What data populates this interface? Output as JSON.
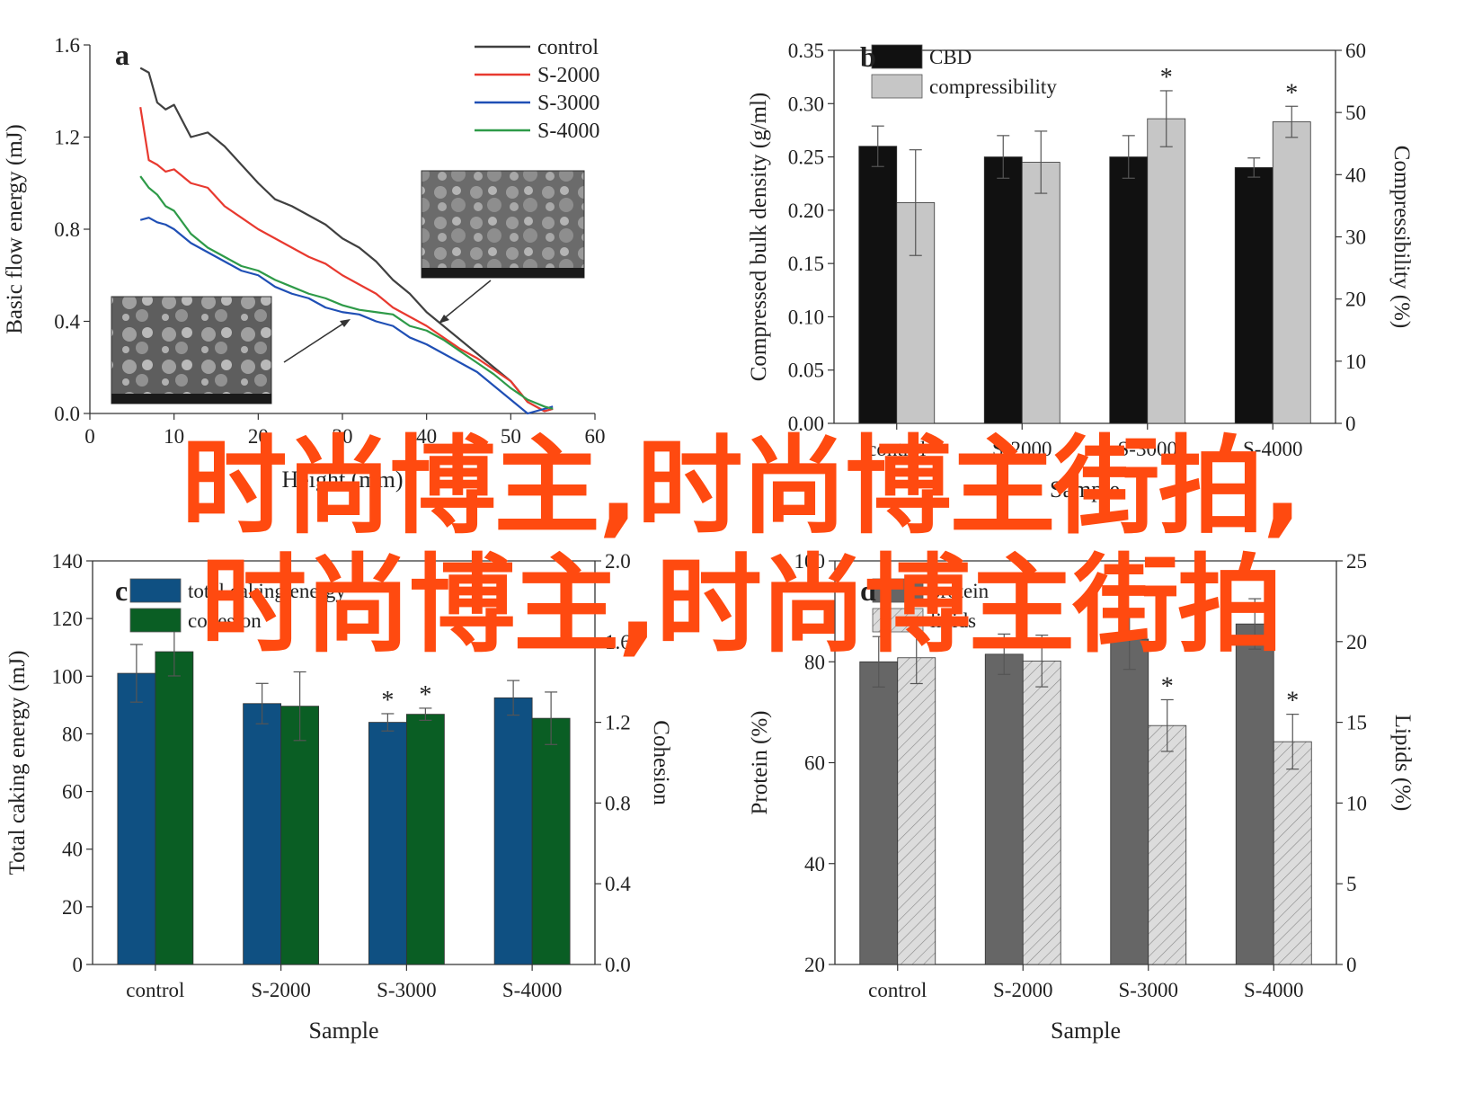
{
  "watermark": {
    "line1": "时尚博主,时尚博主街拍,",
    "line2": "时尚博主,时尚博主街拍"
  },
  "chart_data": [
    {
      "panel": "a",
      "type": "line",
      "xlabel": "Height (mm)",
      "ylabel": "Basic flow energy (mJ)",
      "xlim": [
        0,
        60
      ],
      "ylim": [
        0,
        1.6
      ],
      "xticks": [
        0,
        10,
        20,
        30,
        40,
        50,
        60
      ],
      "yticks": [
        0.0,
        0.4,
        0.8,
        1.2,
        1.6
      ],
      "legend_position": "top-right",
      "series": [
        {
          "name": "control",
          "color": "#404040",
          "x": [
            6,
            7,
            8,
            9,
            10,
            12,
            14,
            16,
            18,
            20,
            22,
            24,
            26,
            28,
            30,
            32,
            34,
            36,
            38,
            40,
            42,
            44,
            46,
            48,
            50,
            52,
            54,
            55
          ],
          "y": [
            1.5,
            1.48,
            1.35,
            1.32,
            1.34,
            1.2,
            1.22,
            1.16,
            1.08,
            1.0,
            0.93,
            0.9,
            0.86,
            0.82,
            0.76,
            0.72,
            0.66,
            0.58,
            0.52,
            0.44,
            0.38,
            0.32,
            0.26,
            0.2,
            0.14,
            0.05,
            0.01,
            0.02
          ]
        },
        {
          "name": "S-2000",
          "color": "#e8392f",
          "x": [
            6,
            7,
            8,
            9,
            10,
            12,
            14,
            16,
            18,
            20,
            22,
            24,
            26,
            28,
            30,
            32,
            34,
            36,
            38,
            40,
            42,
            44,
            46,
            48,
            50,
            52,
            54,
            55
          ],
          "y": [
            1.33,
            1.1,
            1.08,
            1.05,
            1.06,
            1.0,
            0.98,
            0.9,
            0.85,
            0.8,
            0.76,
            0.72,
            0.68,
            0.65,
            0.6,
            0.56,
            0.52,
            0.46,
            0.42,
            0.38,
            0.33,
            0.28,
            0.24,
            0.19,
            0.14,
            0.05,
            0.01,
            0.02
          ]
        },
        {
          "name": "S-3000",
          "color": "#1f4fb5",
          "x": [
            6,
            7,
            8,
            9,
            10,
            12,
            14,
            16,
            18,
            20,
            22,
            24,
            26,
            28,
            30,
            32,
            34,
            36,
            38,
            40,
            42,
            44,
            46,
            48,
            50,
            52,
            54,
            55
          ],
          "y": [
            0.84,
            0.85,
            0.83,
            0.82,
            0.8,
            0.74,
            0.7,
            0.66,
            0.62,
            0.6,
            0.55,
            0.52,
            0.5,
            0.46,
            0.44,
            0.43,
            0.4,
            0.38,
            0.33,
            0.3,
            0.26,
            0.22,
            0.18,
            0.12,
            0.06,
            0.0,
            0.02,
            0.03
          ]
        },
        {
          "name": "S-4000",
          "color": "#2e9a48",
          "x": [
            6,
            7,
            8,
            9,
            10,
            12,
            14,
            16,
            18,
            20,
            22,
            24,
            26,
            28,
            30,
            32,
            34,
            36,
            38,
            40,
            42,
            44,
            46,
            48,
            50,
            52,
            54,
            55
          ],
          "y": [
            1.03,
            0.98,
            0.95,
            0.9,
            0.88,
            0.78,
            0.72,
            0.68,
            0.64,
            0.62,
            0.58,
            0.55,
            0.52,
            0.5,
            0.47,
            0.45,
            0.44,
            0.43,
            0.38,
            0.36,
            0.32,
            0.27,
            0.22,
            0.17,
            0.11,
            0.06,
            0.03,
            0.02
          ]
        }
      ]
    },
    {
      "panel": "b",
      "type": "bar",
      "xlabel": "Sample",
      "ylabel": "Compressed bulk density (g/ml)",
      "y2label": "Compressibility (%)",
      "categories": [
        "control",
        "S-2000",
        "S-3000",
        "S-4000"
      ],
      "ylim": [
        0,
        0.35
      ],
      "y2lim": [
        0,
        60
      ],
      "yticks": [
        0.0,
        0.05,
        0.1,
        0.15,
        0.2,
        0.25,
        0.3,
        0.35
      ],
      "y2ticks": [
        0,
        10,
        20,
        30,
        40,
        50,
        60
      ],
      "legend_position": "top-left",
      "series": [
        {
          "name": "CBD",
          "axis": "left",
          "color": "#111111",
          "values": [
            0.26,
            0.25,
            0.25,
            0.24
          ],
          "errors": [
            0.019,
            0.02,
            0.02,
            0.009
          ],
          "markers": [
            "",
            "",
            "",
            ""
          ]
        },
        {
          "name": "compressibility",
          "axis": "right",
          "color": "#c6c6c6",
          "values": [
            35.5,
            42,
            49,
            48.5
          ],
          "errors": [
            8.5,
            5,
            4.5,
            2.5
          ],
          "markers": [
            "",
            "",
            "*",
            "*"
          ]
        }
      ]
    },
    {
      "panel": "c",
      "type": "bar",
      "xlabel": "Sample",
      "ylabel": "Total caking energy (mJ)",
      "y2label": "Cohesion",
      "categories": [
        "control",
        "S-2000",
        "S-3000",
        "S-4000"
      ],
      "ylim": [
        0,
        140
      ],
      "y2lim": [
        0,
        2.0
      ],
      "yticks": [
        0,
        20,
        40,
        60,
        80,
        100,
        120,
        140
      ],
      "y2ticks": [
        0.0,
        0.4,
        0.8,
        1.2,
        1.6,
        2.0
      ],
      "legend_position": "top-left",
      "series": [
        {
          "name": "total caking energy",
          "axis": "left",
          "color": "#0f5082",
          "values": [
            101,
            90.5,
            84,
            92.5
          ],
          "errors": [
            10,
            7,
            3,
            6
          ],
          "markers": [
            "",
            "",
            "*",
            ""
          ]
        },
        {
          "name": "cohesion",
          "axis": "right",
          "color": "#0a5e24",
          "values": [
            1.55,
            1.28,
            1.24,
            1.22
          ],
          "errors": [
            0.12,
            0.17,
            0.03,
            0.13
          ],
          "markers": [
            "",
            "",
            "*",
            ""
          ]
        }
      ]
    },
    {
      "panel": "d",
      "type": "bar",
      "xlabel": "Sample",
      "ylabel": "Protein (%)",
      "y2label": "Lipids (%)",
      "categories": [
        "control",
        "S-2000",
        "S-3000",
        "S-4000"
      ],
      "ylim": [
        20,
        100
      ],
      "y2lim": [
        0,
        25
      ],
      "yticks": [
        20,
        40,
        60,
        80,
        100
      ],
      "y2ticks": [
        0,
        5,
        10,
        15,
        20,
        25
      ],
      "legend_position": "top-left",
      "series": [
        {
          "name": "protein",
          "axis": "left",
          "color": "#666666",
          "values": [
            80,
            81.5,
            84.5,
            87.5
          ],
          "errors": [
            5,
            4,
            6,
            5
          ],
          "markers": [
            "",
            "",
            "",
            ""
          ]
        },
        {
          "name": "lipids",
          "axis": "right",
          "color": "#d6d6d6",
          "pattern": "hatched",
          "values": [
            19,
            18.8,
            14.8,
            13.8
          ],
          "errors": [
            1.6,
            1.6,
            1.6,
            1.7
          ],
          "markers": [
            "",
            "",
            "*",
            "*"
          ]
        }
      ]
    }
  ]
}
